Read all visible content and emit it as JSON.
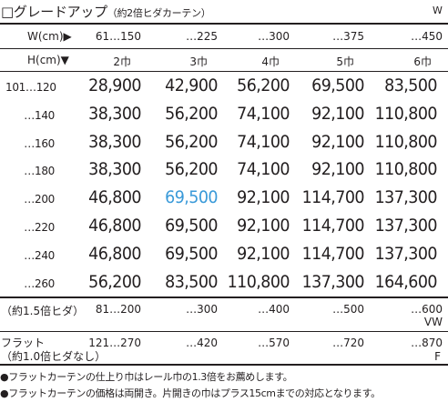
{
  "title": {
    "main": "□グレードアップ",
    "sub": "（約2倍ヒダカーテン）",
    "unit": "W"
  },
  "header": {
    "w_label": "W(cm)▶",
    "widths": [
      "61…150",
      "…225",
      "…300",
      "…375",
      "…450"
    ],
    "h_label": "H(cm)▼",
    "panels": [
      "2巾",
      "3巾",
      "4巾",
      "5巾",
      "6巾"
    ]
  },
  "rows": [
    {
      "label": "101…120",
      "prices": [
        "28,900",
        "42,900",
        "56,200",
        "69,500",
        "83,500"
      ]
    },
    {
      "label": "…140",
      "prices": [
        "38,300",
        "56,200",
        "74,100",
        "92,100",
        "110,800"
      ]
    },
    {
      "label": "…160",
      "prices": [
        "38,300",
        "56,200",
        "74,100",
        "92,100",
        "110,800"
      ]
    },
    {
      "label": "…180",
      "prices": [
        "38,300",
        "56,200",
        "74,100",
        "92,100",
        "110,800"
      ]
    },
    {
      "label": "…200",
      "prices": [
        "46,800",
        "69,500",
        "92,100",
        "114,700",
        "137,300"
      ]
    },
    {
      "label": "…220",
      "prices": [
        "46,800",
        "69,500",
        "92,100",
        "114,700",
        "137,300"
      ]
    },
    {
      "label": "…240",
      "prices": [
        "46,800",
        "69,500",
        "92,100",
        "114,700",
        "137,300"
      ]
    },
    {
      "label": "…260",
      "prices": [
        "56,200",
        "83,500",
        "110,800",
        "137,300",
        "164,600"
      ]
    }
  ],
  "highlight_color": "#3a9ad9",
  "pleat15": {
    "label": "（約1.5倍ヒダ）",
    "widths": [
      "81…200",
      "…300",
      "…400",
      "…500",
      "…600"
    ],
    "unit": "VW"
  },
  "flat": {
    "label1": "フラット",
    "label2": "（約1.0倍ヒダなし）",
    "widths": [
      "121…270",
      "…420",
      "…570",
      "…720",
      "…870"
    ],
    "unit": "F"
  },
  "notes": [
    "●フラットカーテンの仕上り巾はレール巾の1.3倍をお薦めします。",
    "●フラットカーテンの価格は両開き。片開きの巾はプラス15cmまでの対応となります。"
  ]
}
